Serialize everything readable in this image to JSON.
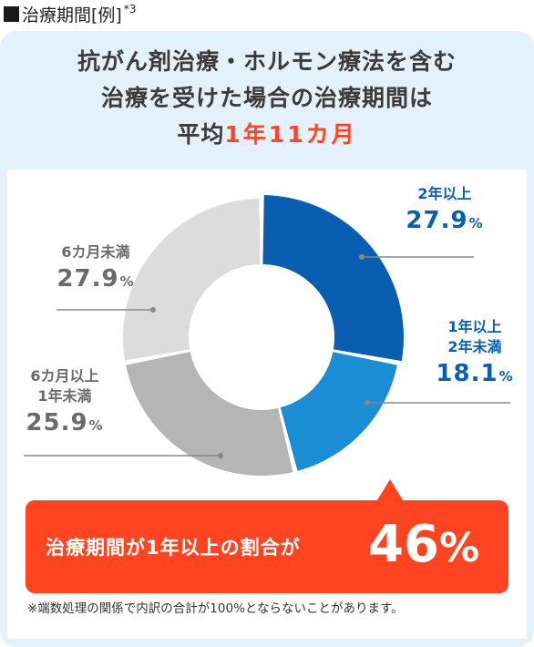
{
  "header": {
    "title": "治療期間[例]",
    "note": "*3"
  },
  "headline": {
    "line1": "抗がん剤治療・ホルモン療法を含む",
    "line2": "治療を受けた場合の治療期間は",
    "line3_prefix": "平均",
    "line3_value": "1年11カ月"
  },
  "chart_data": {
    "type": "pie",
    "donut": true,
    "unit": "%",
    "slices": [
      {
        "label": "2年以上",
        "value": 27.9,
        "value_text": "27.9",
        "color": "#0a5eb2"
      },
      {
        "label": "1年以上2年未満",
        "value": 18.1,
        "value_text": "18.1",
        "color": "#1a8dd4"
      },
      {
        "label": "6カ月以上1年未満",
        "value": 25.9,
        "value_text": "25.9",
        "color": "#b5b5b5"
      },
      {
        "label": "6カ月未満",
        "value": 27.9,
        "value_text": "27.9",
        "color": "#dcdcdc"
      }
    ],
    "labels_display": {
      "s0_name": "2年以上",
      "s1_name1": "1年以上",
      "s1_name2": "2年未満",
      "s2_name1": "6カ月以上",
      "s2_name2": "1年未満",
      "s3_name": "6カ月未満"
    }
  },
  "callout": {
    "text": "治療期間が1年以上の割合が",
    "value": "46",
    "unit": "%",
    "color": "#ff4422"
  },
  "footnote": "※端数処理の関係で内訳の合計が100%とならないことがあります。",
  "colors": {
    "card_bg": "#e5f1fa",
    "accent": "#ff4422",
    "text": "#3b3b3b",
    "leader": "#888888"
  }
}
